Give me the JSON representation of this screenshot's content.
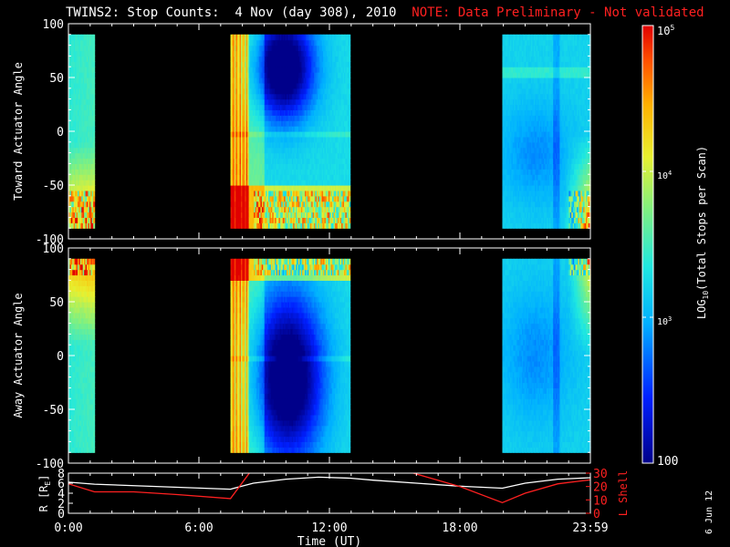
{
  "header": {
    "title": "TWINS2: Stop Counts:  4 Nov (day 308), 2010",
    "note": "NOTE: Data Preliminary - Not validated"
  },
  "side_date": "6 Jun 12",
  "colors": {
    "background": "#000000",
    "axes": "#ffffff",
    "note": "#ff2020",
    "lshell": "#ff2020",
    "radius": "#ffffff"
  },
  "chart_data": [
    {
      "type": "heatmap",
      "panel": "toward",
      "ylabel": "Toward Actuator Angle",
      "yticks": [
        "100",
        "50",
        "0",
        "-50",
        "-100"
      ],
      "ylim": [
        -100,
        100
      ],
      "xlim": [
        0,
        24
      ],
      "data_intervals_hours": [
        [
          0.0,
          1.2
        ],
        [
          7.45,
          12.95
        ],
        [
          19.95,
          24.0
        ]
      ],
      "angle_range": [
        -90,
        90
      ],
      "colorscale": "log",
      "features": "blue minimum centered near 10h over 20 to 90 deg; red/orange band 7.5-8.2h; noisy speckle below -50 deg"
    },
    {
      "type": "heatmap",
      "panel": "away",
      "ylabel": "Away Actuator Angle",
      "yticks": [
        "100",
        "50",
        "0",
        "-50",
        "-100"
      ],
      "ylim": [
        -100,
        100
      ],
      "xlim": [
        0,
        24
      ],
      "data_intervals_hours": [
        [
          0.0,
          1.2
        ],
        [
          7.45,
          12.95
        ],
        [
          19.95,
          24.0
        ]
      ],
      "angle_range": [
        -90,
        90
      ],
      "colorscale": "log",
      "features": "blue minimum centered near 10h over -85 to 50 deg; speckle above 70 deg"
    },
    {
      "type": "line",
      "panel": "ephemeris",
      "xlabel": "Time (UT)",
      "xticks": [
        "0:00",
        "6:00",
        "12:00",
        "18:00",
        "23:59"
      ],
      "xlim": [
        0,
        24
      ],
      "ylabel_left": "R [R",
      "ylabel_left_sub": "E",
      "ylabel_left_end": "]",
      "yticks_left": [
        "8",
        "6",
        "4",
        "2",
        "0"
      ],
      "ylim_left": [
        0,
        8
      ],
      "ylabel_right": "L Shell",
      "yticks_right": [
        "30",
        "20",
        "10",
        "0"
      ],
      "ylim_right": [
        0,
        30
      ],
      "series": [
        {
          "axis": "left",
          "x": [
            0,
            1.2,
            7.45,
            8.5,
            10,
            11.5,
            12.95,
            14,
            16,
            18,
            19.95,
            21,
            22.5,
            24
          ],
          "y": [
            6.2,
            5.8,
            4.8,
            6.0,
            6.8,
            7.2,
            7.0,
            6.6,
            6.0,
            5.4,
            5.0,
            6.0,
            6.8,
            7.1
          ]
        },
        {
          "axis": "right",
          "x": [
            0,
            1.2,
            3,
            5,
            7.45,
            8.5,
            15,
            18,
            19.95,
            21,
            22.5,
            24
          ],
          "y": [
            22,
            16,
            16,
            14,
            11,
            34,
            34,
            20,
            8,
            15,
            22,
            25
          ]
        }
      ]
    }
  ],
  "colorbar": {
    "label": "LOG",
    "label_sub": "10",
    "label_end": "(Total Stops per Scan)",
    "ticks": [
      "10",
      "10",
      "10",
      "100"
    ],
    "tick_exponents": [
      "5",
      "4",
      "3",
      ""
    ],
    "range": [
      100,
      100000
    ]
  }
}
